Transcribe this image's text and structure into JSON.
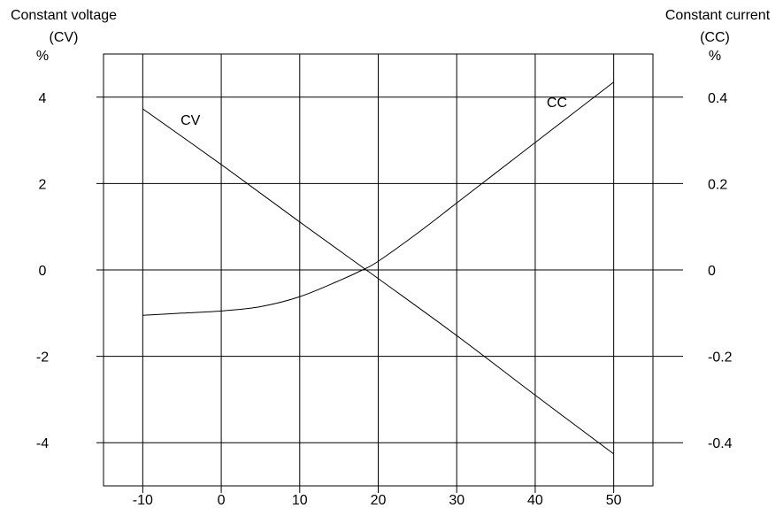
{
  "chart_data": {
    "type": "line",
    "left_axis": {
      "title_line1": "Constant voltage",
      "title_line2": "(CV)",
      "unit": "%",
      "ylim": [
        -5,
        5
      ],
      "ticks": [
        4,
        2,
        0,
        -2,
        -4
      ],
      "tick_labels": [
        "4",
        "2",
        "0",
        "-2",
        "-4"
      ]
    },
    "right_axis": {
      "title_line1": "Constant current",
      "title_line2": "(CC)",
      "unit": "%",
      "ylim": [
        -0.5,
        0.5
      ],
      "ticks": [
        0.4,
        0.2,
        0,
        -0.2,
        -0.4
      ],
      "tick_labels": [
        "0.4",
        "0.2",
        "0",
        "-0.2",
        "-0.4"
      ]
    },
    "x_axis": {
      "xlim": [
        -15,
        55
      ],
      "ticks": [
        -10,
        0,
        10,
        20,
        30,
        40,
        50
      ],
      "tick_labels": [
        "-10",
        "0",
        "10",
        "20",
        "30",
        "40",
        "50"
      ]
    },
    "grid": true,
    "series": [
      {
        "name": "CV",
        "axis": "left",
        "x": [
          -10,
          0,
          10,
          20,
          30,
          40,
          50
        ],
        "y": [
          3.73,
          2.44,
          1.11,
          -0.2,
          -1.52,
          -2.9,
          -4.26
        ]
      },
      {
        "name": "CC",
        "axis": "right",
        "x": [
          -10,
          -5,
          0,
          5,
          10,
          15,
          18,
          20,
          25,
          30,
          35,
          40,
          45,
          50
        ],
        "y": [
          -0.105,
          -0.1,
          -0.095,
          -0.085,
          -0.062,
          -0.025,
          0.0,
          0.02,
          0.085,
          0.155,
          0.225,
          0.295,
          0.365,
          0.435
        ]
      }
    ]
  }
}
